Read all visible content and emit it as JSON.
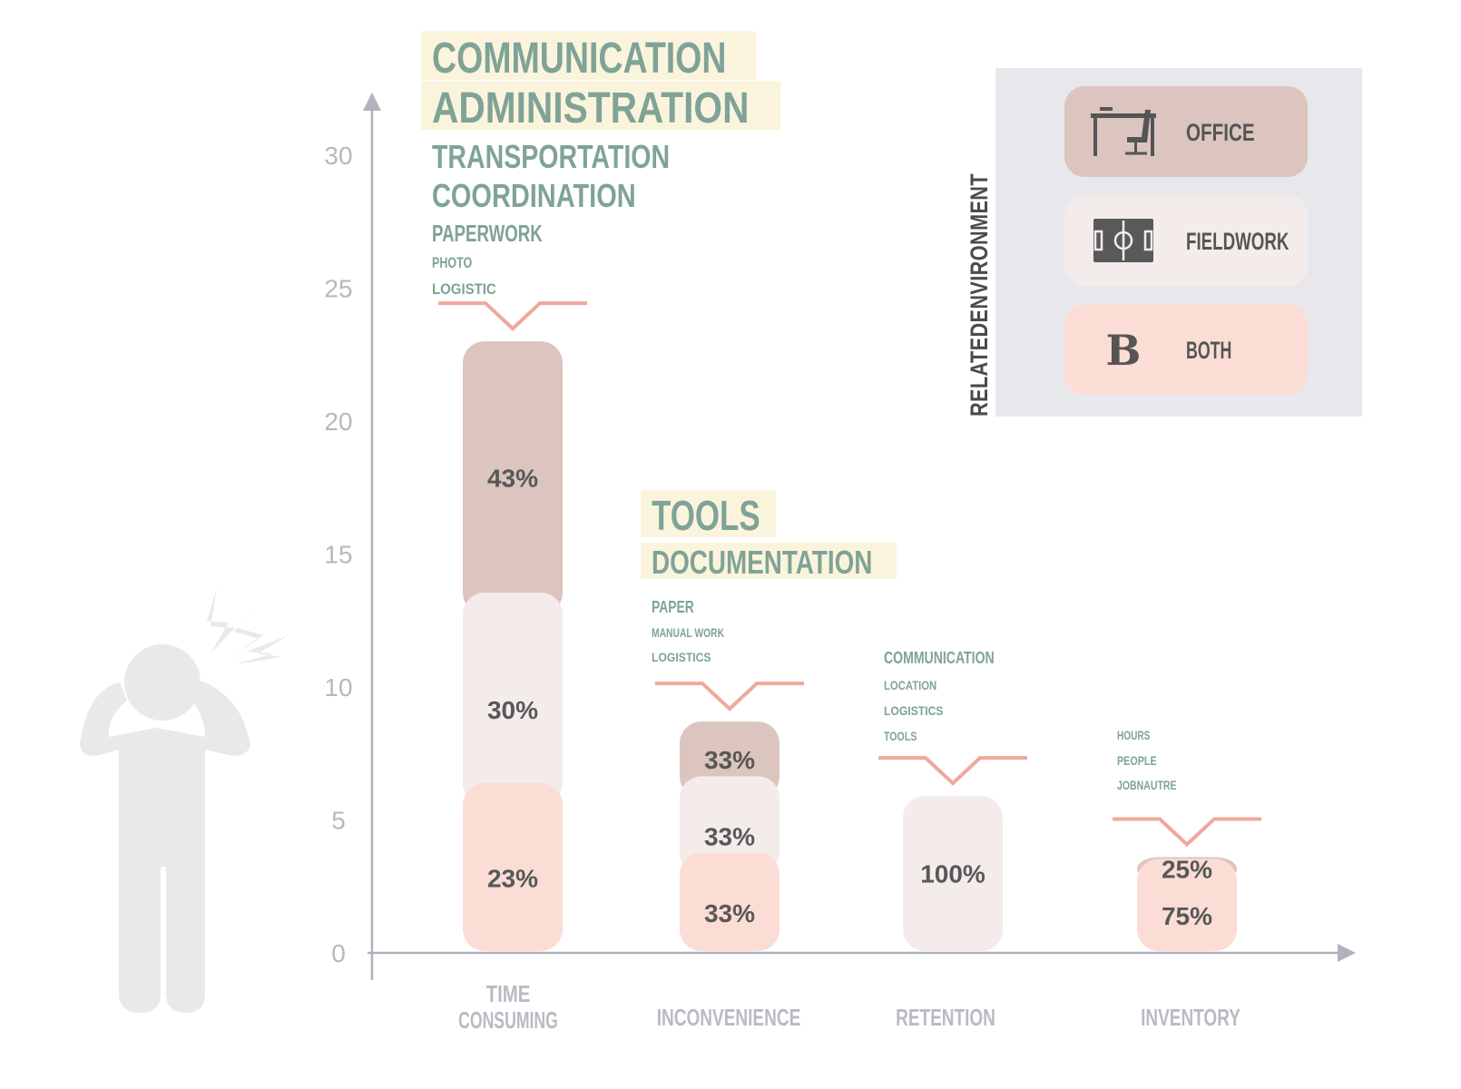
{
  "chart_data": {
    "type": "bar",
    "stacked": true,
    "yticks": [
      0,
      5,
      10,
      15,
      20,
      25,
      30
    ],
    "ylim": [
      0,
      30
    ],
    "categories": [
      {
        "label_lines": [
          "TIME",
          "CONSUMING"
        ],
        "total": 23,
        "segments": [
          {
            "env": "both",
            "value": 23,
            "label": "23%"
          },
          {
            "env": "field",
            "value": 30,
            "label": "30%"
          },
          {
            "env": "office",
            "value": 43,
            "label": "43%"
          }
        ],
        "keywords": [
          {
            "text": "COMMUNICATION",
            "size": 48,
            "highlight": true
          },
          {
            "text": "ADMINISTRATION",
            "size": 48,
            "highlight": true
          },
          {
            "text": "TRANSPORTATION",
            "size": 36,
            "highlight": false
          },
          {
            "text": "COORDINATION",
            "size": 36,
            "highlight": false
          },
          {
            "text": "PAPERWORK",
            "size": 26,
            "highlight": false
          },
          {
            "text": "PHOTO",
            "size": 17,
            "highlight": false
          },
          {
            "text": "LOGISTIC",
            "size": 17,
            "highlight": false
          }
        ]
      },
      {
        "label_lines": [
          "INCONVENIENCE"
        ],
        "total": 8.7,
        "segments": [
          {
            "env": "both",
            "value": 33,
            "label": "33%"
          },
          {
            "env": "field",
            "value": 33,
            "label": "33%"
          },
          {
            "env": "office",
            "value": 33,
            "label": "33%"
          }
        ],
        "keywords": [
          {
            "text": "TOOLS",
            "size": 46,
            "highlight": true
          },
          {
            "text": "DOCUMENTATION",
            "size": 36,
            "highlight": true
          },
          {
            "text": "PAPER",
            "size": 18,
            "highlight": false
          },
          {
            "text": "MANUAL WORK",
            "size": 14,
            "highlight": false
          },
          {
            "text": "LOGISTICS",
            "size": 14,
            "highlight": false
          }
        ]
      },
      {
        "label_lines": [
          "RETENTION"
        ],
        "total": 5.9,
        "segments": [
          {
            "env": "field",
            "value": 100,
            "label": "100%"
          }
        ],
        "keywords": [
          {
            "text": "COMMUNICATION",
            "size": 18,
            "highlight": false
          },
          {
            "text": "LOCATION",
            "size": 14,
            "highlight": false
          },
          {
            "text": "LOGISTICS",
            "size": 14,
            "highlight": false
          },
          {
            "text": "TOOLS",
            "size": 14,
            "highlight": false
          }
        ]
      },
      {
        "label_lines": [
          "INVENTORY"
        ],
        "total": 3.6,
        "segments": [
          {
            "env": "both",
            "value": 75,
            "label": "75%"
          },
          {
            "env": "office",
            "value": 25,
            "label": "25%"
          }
        ],
        "keywords": [
          {
            "text": "HOURS",
            "size": 14,
            "highlight": false
          },
          {
            "text": "PEOPLE",
            "size": 14,
            "highlight": false
          },
          {
            "text": "JOBNAUTRE",
            "size": 14,
            "highlight": false
          }
        ]
      }
    ],
    "legend": {
      "title": "RELATEDENVIRONMENT",
      "placement": "top-right",
      "items": [
        {
          "env": "office",
          "label": "OFFICE",
          "icon": "office-desk-chair-icon"
        },
        {
          "env": "field",
          "label": "FIELDWORK",
          "icon": "field-pitch-icon"
        },
        {
          "env": "both",
          "label": "BOTH",
          "icon": "bold-b-icon",
          "glyph": "B"
        }
      ]
    },
    "colors": {
      "office": "#dcc5be",
      "field": "#f3eceb",
      "both": "#fbddd5",
      "keyword": "#7fa397",
      "highlight": "#fbf4dc",
      "bracket": "#f0a89c",
      "axis": "#b0b2bc",
      "legend_bg": "#e8e8ec"
    }
  }
}
